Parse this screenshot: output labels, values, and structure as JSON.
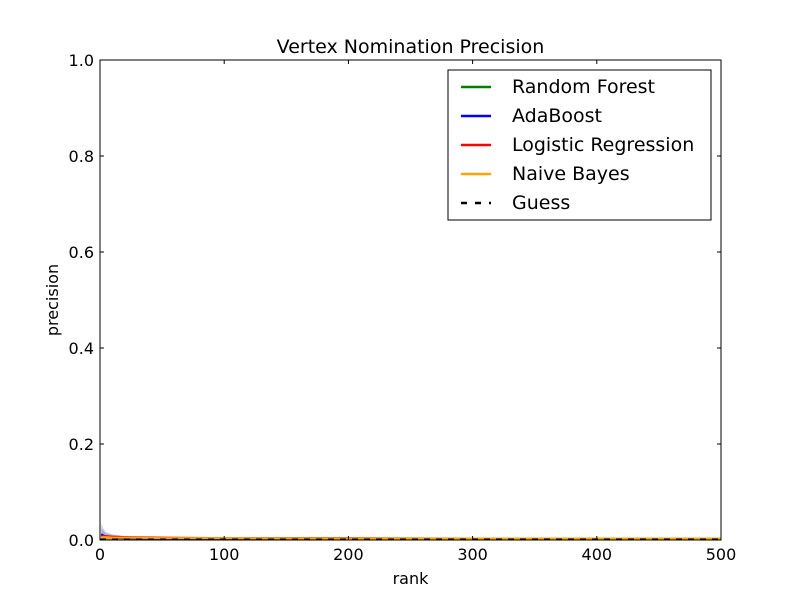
{
  "chart_data": {
    "type": "line",
    "title": "Vertex Nomination Precision",
    "xlabel": "rank",
    "ylabel": "precision",
    "xlim": [
      0,
      500
    ],
    "ylim": [
      0.0,
      1.0
    ],
    "x_ticks": [
      0,
      100,
      200,
      300,
      400,
      500
    ],
    "x_tick_labels": [
      "0",
      "100",
      "200",
      "300",
      "400",
      "500"
    ],
    "y_ticks": [
      0.0,
      0.2,
      0.4,
      0.6,
      0.8,
      1.0
    ],
    "y_tick_labels": [
      "0.0",
      "0.2",
      "0.4",
      "0.6",
      "0.8",
      "1.0"
    ],
    "grid": false,
    "legend_position": "top-right",
    "series": [
      {
        "name": "Random Forest",
        "color": "#008000",
        "dash": "solid",
        "x": [
          1,
          3,
          5,
          10,
          20,
          50,
          100,
          200,
          300,
          400,
          500
        ],
        "y": [
          0.01,
          0.008,
          0.007,
          0.005,
          0.004,
          0.003,
          0.002,
          0.002,
          0.002,
          0.002,
          0.002
        ],
        "band": [
          0.025,
          0.018,
          0.014,
          0.01,
          0.007,
          0.005,
          0.004,
          0.003,
          0.003,
          0.003,
          0.003
        ]
      },
      {
        "name": "AdaBoost",
        "color": "#0000ff",
        "dash": "solid",
        "x": [
          1,
          3,
          5,
          10,
          20,
          50,
          100,
          200,
          300,
          400,
          500
        ],
        "y": [
          0.012,
          0.009,
          0.007,
          0.005,
          0.004,
          0.003,
          0.002,
          0.002,
          0.002,
          0.002,
          0.002
        ],
        "band": [
          0.035,
          0.022,
          0.016,
          0.012,
          0.008,
          0.005,
          0.004,
          0.003,
          0.003,
          0.003,
          0.003
        ]
      },
      {
        "name": "Logistic Regression",
        "color": "#ff0000",
        "dash": "solid",
        "x": [
          1,
          3,
          5,
          10,
          20,
          50,
          100,
          200,
          300,
          400,
          500
        ],
        "y": [
          0.008,
          0.008,
          0.008,
          0.007,
          0.006,
          0.005,
          0.004,
          0.004,
          0.003,
          0.003,
          0.003
        ],
        "band": [
          0.012,
          0.011,
          0.01,
          0.009,
          0.008,
          0.006,
          0.005,
          0.004,
          0.004,
          0.004,
          0.004
        ]
      },
      {
        "name": "Naive Bayes",
        "color": "#ffa500",
        "dash": "solid",
        "x": [
          1,
          3,
          5,
          10,
          20,
          50,
          100,
          200,
          300,
          400,
          500
        ],
        "y": [
          0.006,
          0.006,
          0.006,
          0.005,
          0.005,
          0.004,
          0.004,
          0.003,
          0.003,
          0.003,
          0.003
        ],
        "band": [
          0.009,
          0.009,
          0.008,
          0.007,
          0.006,
          0.005,
          0.004,
          0.004,
          0.004,
          0.004,
          0.004
        ]
      },
      {
        "name": "Guess",
        "color": "#000000",
        "dash": "dashed",
        "x": [
          0,
          500
        ],
        "y": [
          0.001,
          0.001
        ]
      }
    ]
  }
}
